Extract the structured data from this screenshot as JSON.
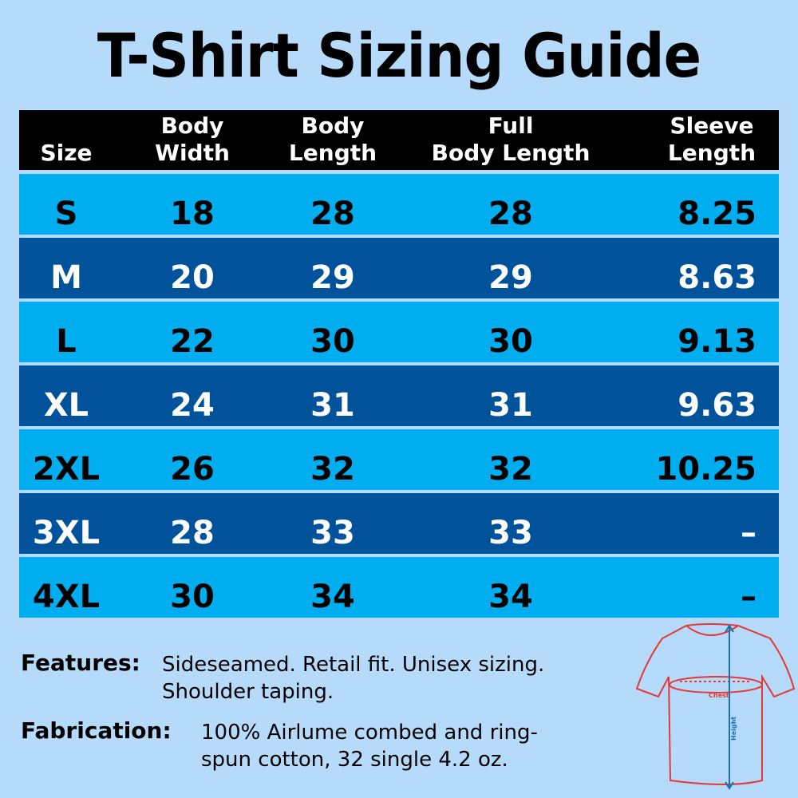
{
  "title": "T-Shirt Sizing Guide",
  "colors": {
    "background": "#b5dafa",
    "header": "#000000",
    "row_light": "#00aeef",
    "row_dark": "#00539b",
    "shirt_outline": "#e53935",
    "height_arrow": "#1a6fb5"
  },
  "table": {
    "headers": [
      "Size",
      "Body\nWidth",
      "Body\nLength",
      "Full\nBody Length",
      "Sleeve\nLength"
    ],
    "rows": [
      [
        "S",
        "18",
        "28",
        "28",
        "8.25"
      ],
      [
        "M",
        "20",
        "29",
        "29",
        "8.63"
      ],
      [
        "L",
        "22",
        "30",
        "30",
        "9.13"
      ],
      [
        "XL",
        "24",
        "31",
        "31",
        "9.63"
      ],
      [
        "2XL",
        "26",
        "32",
        "32",
        "10.25"
      ],
      [
        "3XL",
        "28",
        "33",
        "33",
        "–"
      ],
      [
        "4XL",
        "30",
        "34",
        "34",
        "–"
      ]
    ]
  },
  "features": {
    "label": "Features:",
    "line1": "Sideseamed. Retail fit. Unisex sizing.",
    "line2": "Shoulder taping."
  },
  "fabrication": {
    "label": "Fabrication:",
    "line1": "100% Airlume combed and ring-",
    "line2": "spun cotton, 32 single 4.2 oz."
  },
  "diagram": {
    "chest_label": "Chest",
    "height_label": "Height"
  }
}
